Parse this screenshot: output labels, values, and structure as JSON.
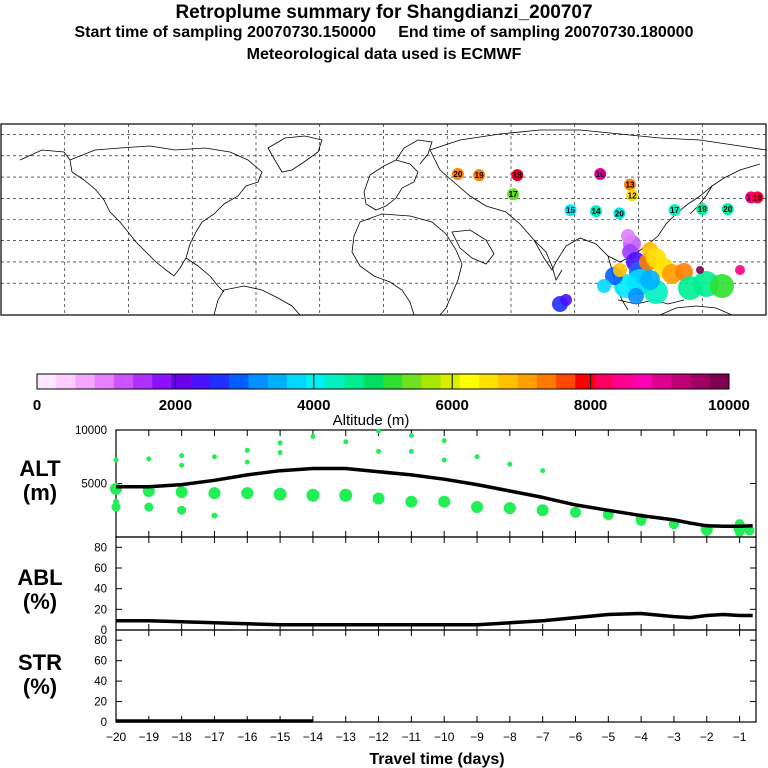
{
  "header": {
    "title": "Retroplume summary for Shangdianzi_200707",
    "sampling_line": "Start time of sampling 20070730.150000     End time of sampling 20070730.180000",
    "met_line": "Meteorological data used is ECMWF"
  },
  "colorbar": {
    "tick_labels": [
      "0",
      "2000",
      "4000",
      "6000",
      "8000",
      "10000"
    ],
    "label": "Altitude (m)",
    "colors": [
      "#ffe6ff",
      "#ffccff",
      "#f5a6ff",
      "#e680ff",
      "#cc55ff",
      "#b030ff",
      "#8a10ff",
      "#6a00e6",
      "#4a10ff",
      "#2030ff",
      "#0060ff",
      "#0090ff",
      "#00b0ff",
      "#00d8ff",
      "#00f0f0",
      "#00f0c0",
      "#00ee90",
      "#00e060",
      "#30e030",
      "#70e020",
      "#a8e800",
      "#d8f000",
      "#ffff00",
      "#ffe000",
      "#ffc000",
      "#ffa000",
      "#ff7800",
      "#ff4800",
      "#ff0000",
      "#ff0060",
      "#ff0090",
      "#ff00b4",
      "#e00090",
      "#c00078",
      "#a00064",
      "#800050"
    ]
  },
  "map": {
    "labels": [
      {
        "text": "20",
        "lon": 35,
        "lat": 40,
        "color": "#ff8000"
      },
      {
        "text": "19",
        "lon": 45,
        "lat": 39,
        "color": "#ff8000"
      },
      {
        "text": "18",
        "lon": 63,
        "lat": 39,
        "color": "#e00030"
      },
      {
        "text": "17",
        "lon": 61,
        "lat": 21,
        "color": "#60e020"
      },
      {
        "text": "16",
        "lon": 102,
        "lat": 40,
        "color": "#e000a0"
      },
      {
        "text": "15",
        "lon": 88,
        "lat": 6,
        "color": "#00e8ff"
      },
      {
        "text": "14",
        "lon": 100,
        "lat": 5,
        "color": "#00e8c0"
      },
      {
        "text": "13",
        "lon": 116,
        "lat": 30,
        "color": "#ff8000"
      },
      {
        "text": "12",
        "lon": 117,
        "lat": 20,
        "color": "#ffe000"
      },
      {
        "text": "20",
        "lon": 111,
        "lat": 3,
        "color": "#00e8e0"
      },
      {
        "text": "17",
        "lon": 137,
        "lat": 6,
        "color": "#00f0c0"
      },
      {
        "text": "19",
        "lon": 150,
        "lat": 7,
        "color": "#00f0a0"
      },
      {
        "text": "20",
        "lon": 162,
        "lat": 7,
        "color": "#00f0a0"
      },
      {
        "text": "17",
        "lon": 173,
        "lat": 18,
        "color": "#ff0080"
      },
      {
        "text": "19",
        "lon": 176,
        "lat": 18,
        "color": "#ff0040"
      }
    ]
  },
  "panels": {
    "alt": {
      "label_line1": "ALT",
      "label_line2": "(m)"
    },
    "abl": {
      "label_line1": "ABL",
      "label_line2": "(%)"
    },
    "str": {
      "label_line1": "STR",
      "label_line2": "(%)"
    },
    "xlabel": "Travel time (days)"
  },
  "chart_data": [
    {
      "type": "line",
      "title": "ALT (m)",
      "xlabel": "Travel time (days)",
      "ylabel": "ALT (m)",
      "xlim": [
        -20,
        -0.5
      ],
      "ylim": [
        0,
        10000
      ],
      "yticks": [
        5000,
        10000
      ],
      "x": [
        -20,
        -19,
        -18,
        -17,
        -16,
        -15,
        -14,
        -13,
        -12,
        -11,
        -10,
        -9,
        -8,
        -7,
        -6,
        -5,
        -4,
        -3,
        -2.5,
        -2,
        -1.5,
        -1,
        -0.6
      ],
      "series": [
        {
          "name": "mean altitude",
          "values": [
            4700,
            4700,
            4900,
            5300,
            5800,
            6200,
            6400,
            6400,
            6100,
            5800,
            5400,
            4900,
            4300,
            3700,
            3000,
            2500,
            2000,
            1600,
            1300,
            1050,
            1000,
            1000,
            1050
          ]
        }
      ],
      "clusters": {
        "x": [
          -20,
          -19,
          -18,
          -17,
          -16,
          -15,
          -14,
          -13,
          -12,
          -11,
          -10,
          -9,
          -8,
          -7,
          -6,
          -5,
          -4,
          -3,
          -2,
          -1
        ],
        "mean": [
          4500,
          4300,
          4200,
          4100,
          4100,
          4000,
          3900,
          3900,
          3600,
          3300,
          3300,
          2800,
          2700,
          2500,
          2300,
          2100,
          1700,
          1300,
          700,
          800
        ],
        "sizes": [
          6,
          6,
          6,
          6,
          6,
          6.5,
          6.5,
          6.5,
          6,
          6,
          6,
          6,
          6,
          6,
          5.5,
          5.5,
          5.5,
          5,
          6,
          6
        ],
        "lower": [
          2800,
          2800,
          2500,
          0,
          0,
          0,
          0,
          0,
          0,
          0,
          0,
          0,
          0,
          0,
          0,
          0,
          0,
          0,
          500,
          400
        ],
        "upper_alt": [
          7200,
          7300,
          7600,
          7500,
          8100,
          8800,
          9400,
          8900,
          9900,
          9500,
          9000,
          7500,
          6800,
          6200,
          0,
          0,
          0,
          0,
          0,
          0
        ],
        "upper2": [
          0,
          0,
          6700,
          0,
          7000,
          7900,
          0,
          0,
          8000,
          8000,
          7200,
          0,
          0,
          0,
          0,
          0,
          0,
          0,
          0,
          0
        ]
      }
    },
    {
      "type": "line",
      "title": "ABL (%)",
      "ylabel": "ABL (%)",
      "xlim": [
        -20,
        -0.5
      ],
      "ylim": [
        0,
        90
      ],
      "yticks": [
        0,
        20,
        40,
        60,
        80
      ],
      "x": [
        -20,
        -19,
        -18,
        -17,
        -16,
        -15,
        -14,
        -13,
        -12,
        -11,
        -10,
        -9,
        -8,
        -7,
        -6,
        -5,
        -4,
        -3,
        -2.5,
        -2,
        -1.5,
        -1,
        -0.6
      ],
      "series": [
        {
          "name": "ABL fraction",
          "values": [
            9,
            9,
            8,
            7,
            6,
            5,
            5,
            5,
            5,
            5,
            5,
            5,
            7,
            9,
            12,
            15,
            16,
            13,
            12,
            14,
            15,
            14,
            14
          ]
        }
      ]
    },
    {
      "type": "line",
      "title": "STR (%)",
      "ylabel": "STR (%)",
      "xlabel": "Travel time (days)",
      "xlim": [
        -20,
        -0.5
      ],
      "ylim": [
        0,
        90
      ],
      "yticks": [
        0,
        20,
        40,
        60,
        80
      ],
      "xticks": [
        -20,
        -19,
        -18,
        -17,
        -16,
        -15,
        -14,
        -13,
        -12,
        -11,
        -10,
        -9,
        -8,
        -7,
        -6,
        -5,
        -4,
        -3,
        -2,
        -1
      ],
      "xtick_labels": [
        "−20",
        "−19",
        "−18",
        "−17",
        "−16",
        "−15",
        "−14",
        "−13",
        "−12",
        "−11",
        "−10",
        "−9",
        "−8",
        "−7",
        "−6",
        "−5",
        "−4",
        "−3",
        "−2",
        "−1"
      ],
      "x": [
        -20,
        -14
      ],
      "series": [
        {
          "name": "stratospheric fraction",
          "values": [
            1,
            1
          ]
        }
      ]
    }
  ]
}
